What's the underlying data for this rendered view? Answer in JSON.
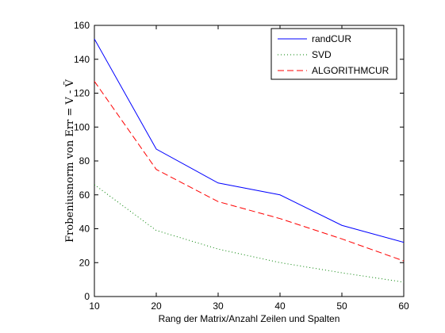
{
  "chart_data": {
    "type": "line",
    "x": [
      10,
      20,
      30,
      40,
      50,
      60
    ],
    "xlim": [
      10,
      60
    ],
    "ylim": [
      0,
      160
    ],
    "xticks": [
      10,
      20,
      30,
      40,
      50,
      60
    ],
    "yticks": [
      0,
      20,
      40,
      60,
      80,
      100,
      120,
      140,
      160
    ],
    "xlabel": "Rang der Matrix/Anzahl Zeilen und Spalten",
    "ylabel": "Frobeniusnorm von Err = V - Ṽ",
    "grid": false,
    "legend_position": "top-right",
    "series": [
      {
        "name": "randCUR",
        "values": [
          152,
          87,
          67,
          60,
          42,
          32
        ],
        "color": "#0000ff",
        "style": "solid"
      },
      {
        "name": "SVD",
        "values": [
          66,
          39,
          28,
          20,
          14,
          8.5
        ],
        "color": "#008000",
        "style": "dotted"
      },
      {
        "name": "ALGORITHMCUR",
        "values": [
          127,
          75,
          56,
          46,
          34,
          21
        ],
        "color": "#ff0000",
        "style": "dashed"
      }
    ]
  }
}
